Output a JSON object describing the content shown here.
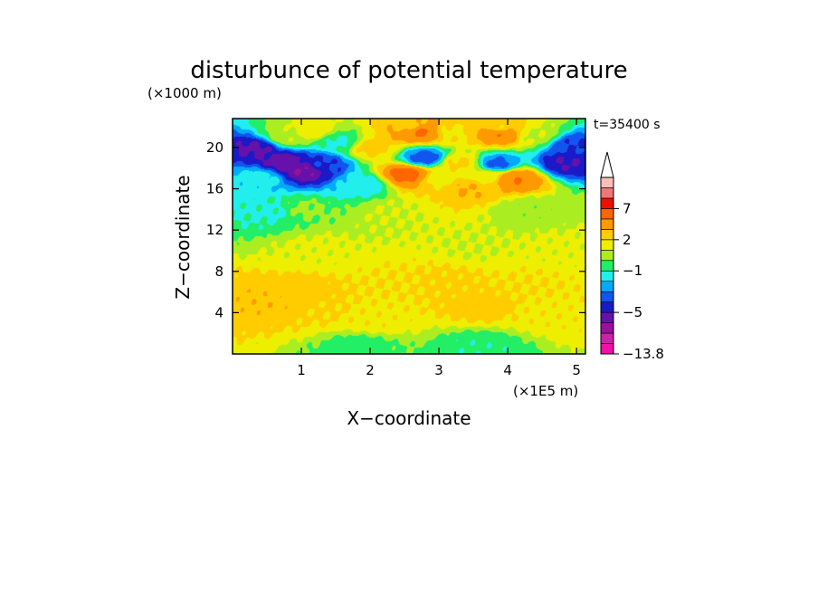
{
  "chart_data": {
    "type": "heatmap",
    "title": "disturbunce of potential temperature",
    "y_unit": "(×1000 m)",
    "x_unit": "(×1E5 m)",
    "xlabel": "X−coordinate",
    "ylabel": "Z−coordinate",
    "time_label": "t=35400 s",
    "xlim": [
      0,
      5.13
    ],
    "ylim": [
      0,
      22.8
    ],
    "x_ticks": [
      1,
      2,
      3,
      4,
      5
    ],
    "y_ticks": [
      4,
      8,
      12,
      16,
      20
    ],
    "colorbar": {
      "extend": "max",
      "labels": [
        {
          "value": 7,
          "text": "7"
        },
        {
          "value": 2,
          "text": "2"
        },
        {
          "value": -1,
          "text": "−1"
        },
        {
          "value": -5,
          "text": "−5"
        },
        {
          "value": -13.8,
          "text": "−13.8"
        }
      ],
      "levels": [
        -13.8,
        -9,
        -7,
        -6,
        -5,
        -4,
        -3,
        -2,
        -1,
        0,
        1,
        2,
        3,
        5,
        7,
        9,
        13
      ],
      "colors": [
        "#ee11aa",
        "#cc22aa",
        "#991199",
        "#6611aa",
        "#1a1ac8",
        "#1155ee",
        "#00aaff",
        "#22eeee",
        "#22ee66",
        "#aaee22",
        "#eeee00",
        "#ffcc00",
        "#ff9900",
        "#ff6600",
        "#ee1100",
        "#ee7777",
        "#f8c0b8"
      ]
    },
    "features": [
      {
        "x": 0.35,
        "z": 19.9,
        "value": -5.2
      },
      {
        "x": 0.75,
        "z": 18.6,
        "value": -5.5
      },
      {
        "x": 1.05,
        "z": 17.8,
        "value": -6.0
      },
      {
        "x": 1.3,
        "z": 18.4,
        "value": -4.0
      },
      {
        "x": 0.4,
        "z": 17.0,
        "value": -1.6
      },
      {
        "x": 1.9,
        "z": 16.4,
        "value": -1.6
      },
      {
        "x": 1.55,
        "z": 20.5,
        "value": -1.2
      },
      {
        "x": 4.85,
        "z": 18.5,
        "value": -5.0
      },
      {
        "x": 4.95,
        "z": 20.2,
        "value": -4.0
      },
      {
        "x": 0.6,
        "z": 13.8,
        "value": -1.2
      },
      {
        "x": 0.55,
        "z": 5.0,
        "value": 2.8
      },
      {
        "x": 0.9,
        "z": 5.6,
        "value": 2.6
      },
      {
        "x": 1.3,
        "z": 4.2,
        "value": 2.1
      },
      {
        "x": 2.4,
        "z": 6.8,
        "value": 2.0
      },
      {
        "x": 3.1,
        "z": 7.0,
        "value": 2.2
      },
      {
        "x": 4.3,
        "z": 6.6,
        "value": 2.0
      },
      {
        "x": 3.6,
        "z": 4.6,
        "value": 2.4
      },
      {
        "x": 2.0,
        "z": 3.5,
        "value": 1.8
      },
      {
        "x": 4.6,
        "z": 4.0,
        "value": 1.8
      },
      {
        "x": 1.2,
        "z": 10.2,
        "value": 1.2
      },
      {
        "x": 3.5,
        "z": 10.5,
        "value": 1.0
      },
      {
        "x": 4.8,
        "z": 10.2,
        "value": 1.2
      },
      {
        "x": 1.0,
        "z": 14.0,
        "value": 0.2
      },
      {
        "x": 4.3,
        "z": 14.0,
        "value": 0.3
      },
      {
        "x": 2.3,
        "z": 13.6,
        "value": 1.0
      },
      {
        "x": 1.15,
        "z": 21.6,
        "value": 1.6
      },
      {
        "x": 0.8,
        "z": 21.0,
        "value": 0.8
      },
      {
        "x": 3.3,
        "z": 18.5,
        "value": 2.2
      },
      {
        "x": 3.0,
        "z": 17.0,
        "value": 1.6
      },
      {
        "x": 3.7,
        "z": 17.2,
        "value": 1.6
      },
      {
        "x": 3.2,
        "z": 21.5,
        "value": 1.8
      },
      {
        "x": 2.6,
        "z": 22.0,
        "value": 2.2
      },
      {
        "x": 3.9,
        "z": 21.8,
        "value": 2.0
      },
      {
        "x": 4.4,
        "z": 21.2,
        "value": 0.9
      },
      {
        "x": 2.8,
        "z": 19.0,
        "value": -3.6
      },
      {
        "x": 3.85,
        "z": 18.4,
        "value": -3.4
      },
      {
        "x": 2.55,
        "z": 17.4,
        "value": 5.8
      },
      {
        "x": 4.1,
        "z": 17.0,
        "value": 5.0
      },
      {
        "x": 2.7,
        "z": 21.6,
        "value": 5.5
      },
      {
        "x": 3.9,
        "z": 21.4,
        "value": 5.0
      },
      {
        "x": 3.4,
        "z": 16.0,
        "value": 3.0
      },
      {
        "x": 2.0,
        "z": 20.0,
        "value": 2.4
      },
      {
        "x": 1.8,
        "z": 0.6,
        "value": -0.5
      },
      {
        "x": 3.6,
        "z": 0.6,
        "value": -0.8
      }
    ]
  }
}
